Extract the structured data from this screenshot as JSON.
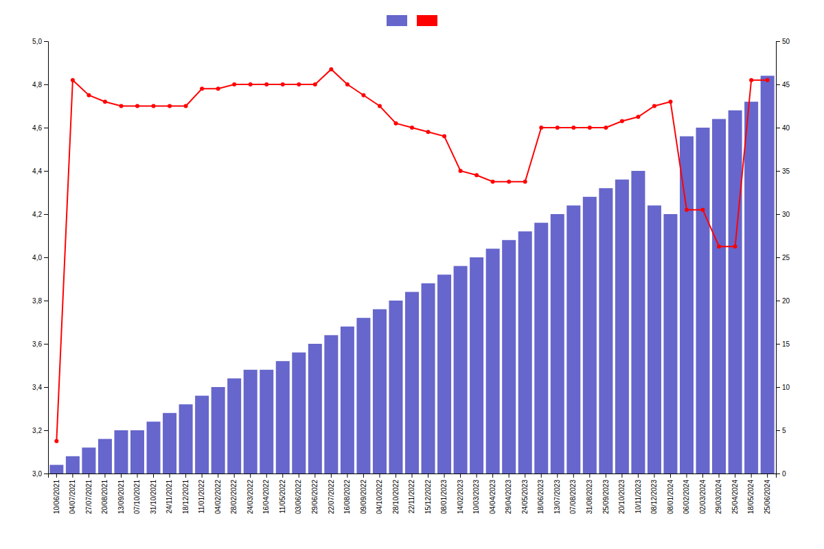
{
  "chart_data": {
    "type": "bar",
    "categories": [
      "10/06/2021",
      "04/07/2021",
      "27/07/2021",
      "20/08/2021",
      "13/09/2021",
      "07/10/2021",
      "31/10/2021",
      "24/11/2021",
      "18/12/2021",
      "11/01/2022",
      "04/02/2022",
      "28/02/2022",
      "24/03/2022",
      "16/04/2022",
      "11/05/2022",
      "03/06/2022",
      "29/06/2022",
      "22/07/2022",
      "16/08/2022",
      "09/09/2022",
      "04/10/2022",
      "28/10/2022",
      "22/11/2022",
      "15/12/2022",
      "08/01/2023",
      "14/02/2023",
      "10/03/2023",
      "04/04/2023",
      "29/04/2023",
      "24/05/2023",
      "18/06/2023",
      "13/07/2023",
      "07/08/2023",
      "31/08/2023",
      "25/09/2023",
      "20/10/2023",
      "10/11/2023",
      "08/12/2023",
      "08/01/2024",
      "06/02/2024",
      "02/03/2024",
      "29/03/2024",
      "25/04/2024",
      "18/05/2024",
      "25/06/2024"
    ],
    "series": [
      {
        "type": "bar",
        "axis": "y2",
        "color": "#6666cc",
        "values": [
          1,
          2,
          3,
          4,
          5,
          5,
          6,
          7,
          8,
          9,
          10,
          11,
          12,
          12,
          13,
          14,
          15,
          16,
          17,
          18,
          19,
          20,
          21,
          22,
          23,
          24,
          25,
          26,
          27,
          28,
          29,
          30,
          31,
          32,
          33,
          34,
          35,
          31,
          30,
          39,
          40,
          41,
          42,
          43,
          46
        ]
      },
      {
        "type": "line",
        "color": "#ff0000",
        "marker": "circle",
        "values": [
          3.15,
          4.82,
          4.75,
          4.72,
          4.7,
          4.7,
          4.7,
          4.7,
          4.7,
          4.78,
          4.78,
          4.8,
          4.8,
          4.8,
          4.8,
          4.8,
          4.8,
          4.87,
          4.8,
          4.75,
          4.7,
          4.62,
          4.6,
          4.58,
          4.56,
          4.4,
          4.38,
          4.35,
          4.35,
          4.35,
          4.6,
          4.6,
          4.6,
          4.6,
          4.6,
          4.63,
          4.65,
          4.7,
          4.72,
          4.22,
          4.22,
          4.05,
          4.05,
          4.82,
          4.82
        ]
      }
    ],
    "ylim": [
      3.0,
      5.0
    ],
    "yticks": [
      {
        "value": 3.0,
        "label": "3,0"
      },
      {
        "value": 3.2,
        "label": "3,2"
      },
      {
        "value": 3.4,
        "label": "3,4"
      },
      {
        "value": 3.6,
        "label": "3,6"
      },
      {
        "value": 3.8,
        "label": "3,8"
      },
      {
        "value": 4.0,
        "label": "4,0"
      },
      {
        "value": 4.2,
        "label": "4,2"
      },
      {
        "value": 4.4,
        "label": "4,4"
      },
      {
        "value": 4.6,
        "label": "4,6"
      },
      {
        "value": 4.8,
        "label": "4,8"
      },
      {
        "value": 5.0,
        "label": "5,0"
      }
    ],
    "y2lim": [
      0,
      50
    ],
    "y2ticks": [
      0,
      5,
      10,
      15,
      20,
      25,
      30,
      35,
      40,
      45,
      50
    ],
    "grid": false,
    "legend": "top"
  }
}
